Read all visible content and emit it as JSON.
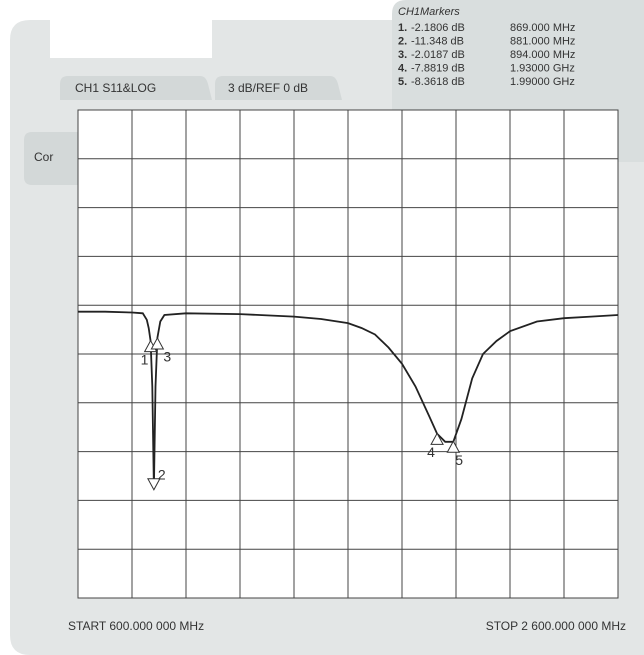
{
  "chart_data": {
    "type": "line",
    "channel_label": "CH1 S11&LOG",
    "scale_label": "3 dB/REF 0 dB",
    "correction_label": "Cor",
    "start_label": "START 600.000 000 MHz",
    "stop_label": "STOP 2 600.000 000 MHz",
    "xlim": [
      600,
      2600
    ],
    "xticks": [
      600,
      800,
      1000,
      1200,
      1400,
      1600,
      1800,
      2000,
      2200,
      2400,
      2600
    ],
    "ylim": [
      -18,
      12
    ],
    "yticks": [
      -18,
      -15,
      -12,
      -9,
      -6,
      -3,
      0,
      3,
      6,
      9,
      12
    ],
    "grid": true,
    "series": [
      {
        "color": "#222222",
        "x": [
          600,
          700,
          800,
          840,
          855,
          862,
          869,
          875,
          881,
          887,
          894,
          905,
          920,
          1000,
          1200,
          1400,
          1500,
          1600,
          1650,
          1700,
          1750,
          1800,
          1850,
          1900,
          1930,
          1960,
          1990,
          2020,
          2060,
          2100,
          2150,
          2200,
          2300,
          2400,
          2500,
          2600
        ],
        "values": [
          -0.4,
          -0.4,
          -0.45,
          -0.5,
          -0.9,
          -1.4,
          -2.2,
          -5,
          -11.3,
          -5,
          -2.0,
          -1.0,
          -0.6,
          -0.5,
          -0.55,
          -0.7,
          -0.85,
          -1.1,
          -1.4,
          -1.8,
          -2.6,
          -3.6,
          -5.0,
          -6.8,
          -7.9,
          -8.4,
          -8.4,
          -7.0,
          -4.5,
          -3.0,
          -2.2,
          -1.6,
          -1.0,
          -0.8,
          -0.7,
          -0.6
        ]
      }
    ],
    "markers": {
      "title": "CH1Markers",
      "ids": [
        "1.",
        "2.",
        "3.",
        "4.",
        "5."
      ],
      "marker_labels": [
        "1",
        "2",
        "3",
        "4",
        "5"
      ],
      "values": [
        -2.1806,
        -11.348,
        -2.0187,
        -7.8819,
        -8.3618
      ],
      "value_labels": [
        "-2.1806 dB",
        "-11.348 dB",
        "-2.0187 dB",
        "-7.8819 dB",
        "-8.3618 dB"
      ],
      "x": [
        869,
        881,
        894,
        1930,
        1990
      ],
      "x_labels": [
        "869.000 MHz",
        "881.000 MHz",
        "894.000 MHz",
        "1.93000 GHz",
        "1.99000 GHz"
      ]
    }
  }
}
